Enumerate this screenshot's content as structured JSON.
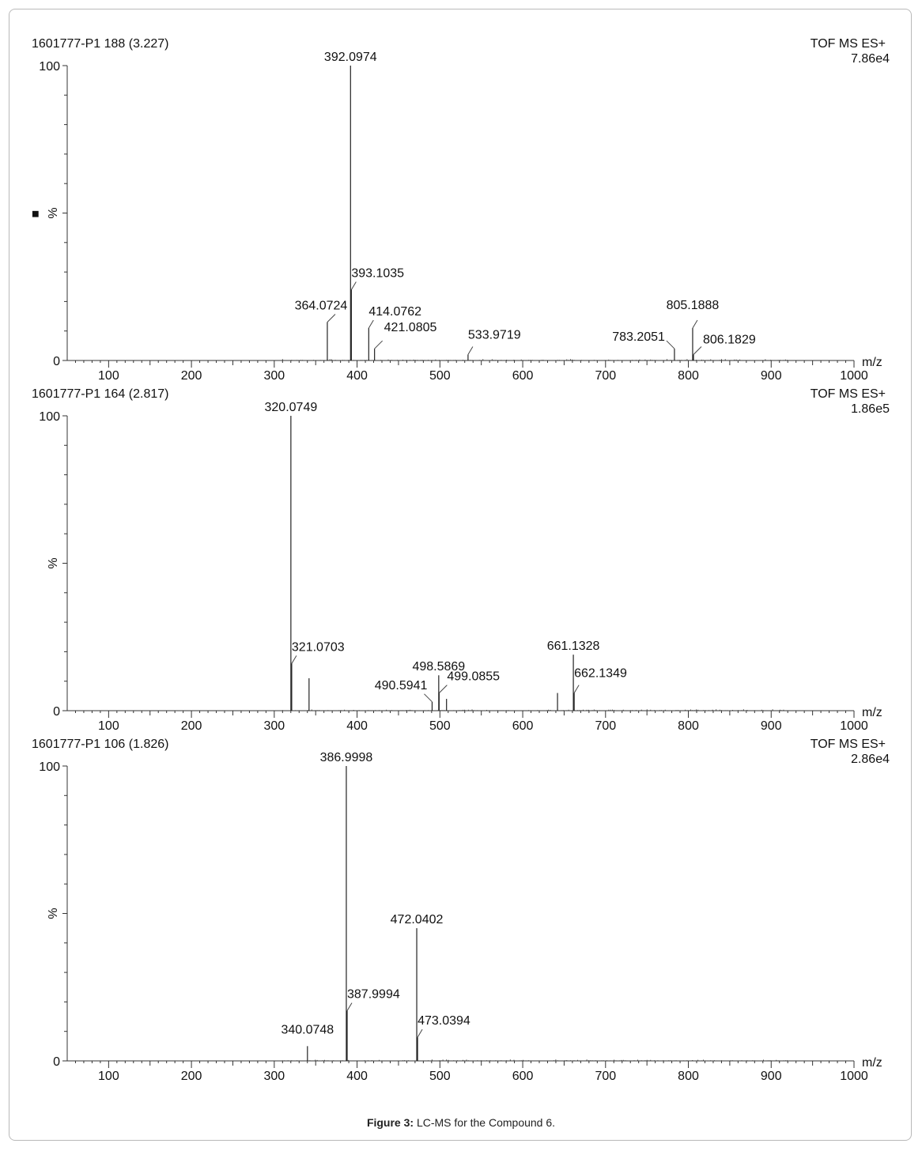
{
  "caption": {
    "label": "Figure 3:",
    "text": " LC-MS for the Compound 6."
  },
  "legend_marker": "■",
  "chart_data": [
    {
      "type": "bar",
      "title": "1601777-P1 188 (3.227)",
      "mode": "TOF MS ES+",
      "intensity": "7.86e4",
      "xlabel": "m/z",
      "ylabel": "%",
      "xlim": [
        50,
        1000
      ],
      "ylim": [
        0,
        100
      ],
      "xticks": [
        100,
        200,
        300,
        400,
        500,
        600,
        700,
        800,
        900,
        1000
      ],
      "yticks": [
        0,
        100
      ],
      "peaks": [
        {
          "mz": 364.0724,
          "intensity": 13,
          "label": "364.0724"
        },
        {
          "mz": 392.0974,
          "intensity": 100,
          "label": "392.0974"
        },
        {
          "mz": 393.1035,
          "intensity": 24,
          "label": "393.1035"
        },
        {
          "mz": 414.0762,
          "intensity": 11,
          "label": "414.0762"
        },
        {
          "mz": 421.0805,
          "intensity": 4,
          "label": "421.0805"
        },
        {
          "mz": 533.9719,
          "intensity": 2,
          "label": "533.9719"
        },
        {
          "mz": 783.2051,
          "intensity": 4,
          "label": "783.2051"
        },
        {
          "mz": 805.1888,
          "intensity": 11,
          "label": "805.1888"
        },
        {
          "mz": 806.1829,
          "intensity": 2,
          "label": "806.1829"
        }
      ]
    },
    {
      "type": "bar",
      "title": "1601777-P1 164 (2.817)",
      "mode": "TOF MS ES+",
      "intensity": "1.86e5",
      "xlabel": "m/z",
      "ylabel": "%",
      "xlim": [
        50,
        1000
      ],
      "ylim": [
        0,
        100
      ],
      "xticks": [
        100,
        200,
        300,
        400,
        500,
        600,
        700,
        800,
        900,
        1000
      ],
      "yticks": [
        0,
        100
      ],
      "peaks": [
        {
          "mz": 320.0749,
          "intensity": 100,
          "label": "320.0749"
        },
        {
          "mz": 321.0703,
          "intensity": 16,
          "label": "321.0703"
        },
        {
          "mz": 342.0,
          "intensity": 11,
          "label": ""
        },
        {
          "mz": 490.5941,
          "intensity": 3,
          "label": "490.5941"
        },
        {
          "mz": 498.5869,
          "intensity": 12,
          "label": "498.5869"
        },
        {
          "mz": 499.0855,
          "intensity": 6,
          "label": "499.0855"
        },
        {
          "mz": 508.0,
          "intensity": 4,
          "label": ""
        },
        {
          "mz": 642.0,
          "intensity": 6,
          "label": ""
        },
        {
          "mz": 661.1328,
          "intensity": 19,
          "label": "661.1328"
        },
        {
          "mz": 662.1349,
          "intensity": 6,
          "label": "662.1349"
        }
      ]
    },
    {
      "type": "bar",
      "title": "1601777-P1 106 (1.826)",
      "mode": "TOF MS ES+",
      "intensity": "2.86e4",
      "xlabel": "m/z",
      "ylabel": "%",
      "xlim": [
        50,
        1000
      ],
      "ylim": [
        0,
        100
      ],
      "xticks": [
        100,
        200,
        300,
        400,
        500,
        600,
        700,
        800,
        900,
        1000
      ],
      "yticks": [
        0,
        100
      ],
      "peaks": [
        {
          "mz": 340.0748,
          "intensity": 5,
          "label": "340.0748"
        },
        {
          "mz": 386.9998,
          "intensity": 100,
          "label": "386.9998"
        },
        {
          "mz": 387.9994,
          "intensity": 17,
          "label": "387.9994"
        },
        {
          "mz": 472.0402,
          "intensity": 45,
          "label": "472.0402"
        },
        {
          "mz": 473.0394,
          "intensity": 8,
          "label": "473.0394"
        }
      ]
    }
  ]
}
